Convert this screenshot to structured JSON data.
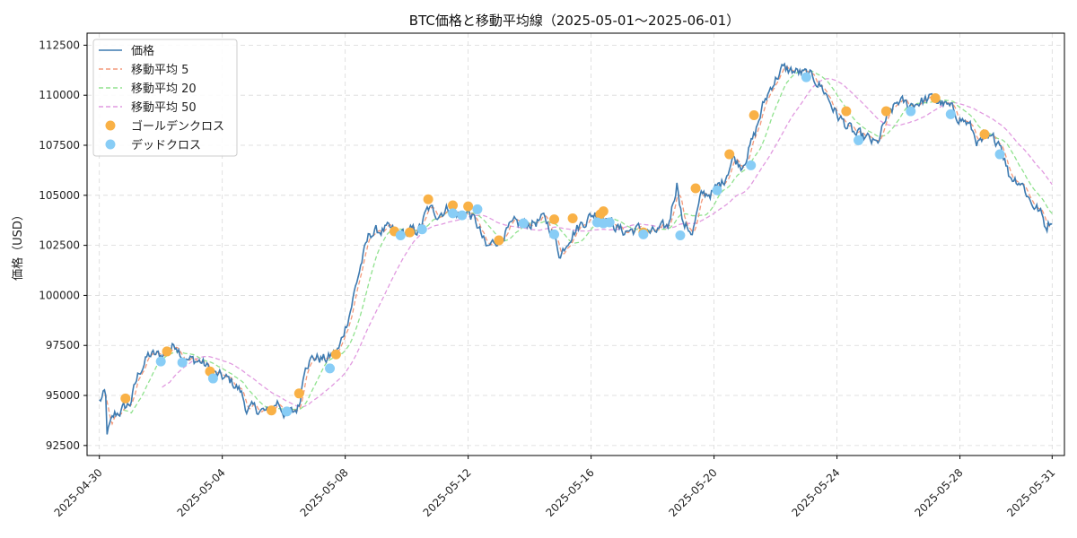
{
  "chart_data": {
    "type": "line",
    "title": "BTC価格と移動平均線（2025-05-01〜2025-06-01）",
    "xlabel": "",
    "ylabel": "価格（USD）",
    "ylim": [
      92000,
      113100
    ],
    "yticks": [
      92500,
      95000,
      97500,
      100000,
      102500,
      105000,
      107500,
      110000,
      112500
    ],
    "xlim": [
      -0.4,
      31.4
    ],
    "xticks": [
      {
        "pos": 0,
        "label": "2025-04-30"
      },
      {
        "pos": 4,
        "label": "2025-05-04"
      },
      {
        "pos": 8,
        "label": "2025-05-08"
      },
      {
        "pos": 12,
        "label": "2025-05-12"
      },
      {
        "pos": 16,
        "label": "2025-05-16"
      },
      {
        "pos": 20,
        "label": "2025-05-20"
      },
      {
        "pos": 24,
        "label": "2025-05-24"
      },
      {
        "pos": 28,
        "label": "2025-05-28"
      },
      {
        "pos": 31,
        "label": "2025-05-31"
      }
    ],
    "grid": true,
    "legend_position": "upper-left",
    "anchors": [
      [
        0,
        94700
      ],
      [
        0.2,
        95100
      ],
      [
        0.25,
        93100
      ],
      [
        0.5,
        94000
      ],
      [
        1,
        94600
      ],
      [
        1.3,
        96200
      ],
      [
        1.6,
        97000
      ],
      [
        2,
        97000
      ],
      [
        2.3,
        97300
      ],
      [
        2.5,
        97600
      ],
      [
        2.8,
        96800
      ],
      [
        3.3,
        96700
      ],
      [
        3.8,
        96000
      ],
      [
        4.3,
        95700
      ],
      [
        4.6,
        95200
      ],
      [
        4.8,
        94300
      ],
      [
        5.2,
        94300
      ],
      [
        5.5,
        94100
      ],
      [
        5.8,
        94700
      ],
      [
        6.0,
        94200
      ],
      [
        6.3,
        94100
      ],
      [
        6.5,
        94500
      ],
      [
        6.7,
        96700
      ],
      [
        7.0,
        96900
      ],
      [
        7.4,
        96800
      ],
      [
        7.8,
        97300
      ],
      [
        8.2,
        99500
      ],
      [
        8.5,
        101500
      ],
      [
        8.8,
        103100
      ],
      [
        9.3,
        103300
      ],
      [
        9.7,
        103100
      ],
      [
        10.0,
        103100
      ],
      [
        10.4,
        103300
      ],
      [
        10.7,
        104300
      ],
      [
        11.0,
        104100
      ],
      [
        11.4,
        104400
      ],
      [
        11.7,
        104000
      ],
      [
        12.0,
        104200
      ],
      [
        12.3,
        103500
      ],
      [
        12.6,
        102300
      ],
      [
        13.0,
        102900
      ],
      [
        13.5,
        103500
      ],
      [
        14.0,
        103600
      ],
      [
        14.5,
        103800
      ],
      [
        14.8,
        103000
      ],
      [
        15.0,
        102000
      ],
      [
        15.3,
        103000
      ],
      [
        15.7,
        103600
      ],
      [
        16.0,
        104000
      ],
      [
        16.3,
        104200
      ],
      [
        16.6,
        103700
      ],
      [
        17.0,
        103200
      ],
      [
        17.5,
        103300
      ],
      [
        18.0,
        103100
      ],
      [
        18.5,
        103400
      ],
      [
        18.8,
        105700
      ],
      [
        19.0,
        103500
      ],
      [
        19.3,
        103200
      ],
      [
        19.6,
        105000
      ],
      [
        20.0,
        105200
      ],
      [
        20.3,
        105700
      ],
      [
        20.6,
        106900
      ],
      [
        20.9,
        106500
      ],
      [
        21.3,
        107900
      ],
      [
        21.6,
        109500
      ],
      [
        21.9,
        110600
      ],
      [
        22.2,
        111300
      ],
      [
        22.6,
        111200
      ],
      [
        23.0,
        111000
      ],
      [
        23.3,
        110800
      ],
      [
        23.6,
        110200
      ],
      [
        24.0,
        109000
      ],
      [
        24.3,
        108500
      ],
      [
        24.6,
        108000
      ],
      [
        25.0,
        107800
      ],
      [
        25.3,
        107500
      ],
      [
        25.6,
        108800
      ],
      [
        26.0,
        109700
      ],
      [
        26.3,
        109500
      ],
      [
        26.7,
        109700
      ],
      [
        27.0,
        109800
      ],
      [
        27.3,
        109700
      ],
      [
        27.7,
        109300
      ],
      [
        28.0,
        108900
      ],
      [
        28.3,
        108500
      ],
      [
        28.6,
        107600
      ],
      [
        29.0,
        107700
      ],
      [
        29.3,
        107800
      ],
      [
        29.6,
        106000
      ],
      [
        30.0,
        105700
      ],
      [
        30.3,
        104700
      ],
      [
        30.6,
        104200
      ],
      [
        30.8,
        103400
      ],
      [
        31.0,
        103900
      ]
    ],
    "series": [
      {
        "name": "価格",
        "color": "#3d7ab0",
        "style": "solid"
      },
      {
        "name": "移動平均 5",
        "color": "#f4997a",
        "style": "dashed",
        "window": 5
      },
      {
        "name": "移動平均 20",
        "color": "#90e28e",
        "style": "dashed",
        "window": 20
      },
      {
        "name": "移動平均 50",
        "color": "#e19ae0",
        "style": "dashed",
        "window": 50
      }
    ],
    "golden_cross": {
      "name": "ゴールデンクロス",
      "color": "#f9b146",
      "points": [
        [
          0.85,
          94850
        ],
        [
          2.2,
          97200
        ],
        [
          3.6,
          96200
        ],
        [
          5.6,
          94250
        ],
        [
          6.5,
          95100
        ],
        [
          7.7,
          97050
        ],
        [
          9.6,
          103200
        ],
        [
          10.1,
          103150
        ],
        [
          10.7,
          104800
        ],
        [
          11.5,
          104500
        ],
        [
          12.0,
          104450
        ],
        [
          13.0,
          102750
        ],
        [
          14.8,
          103800
        ],
        [
          15.4,
          103850
        ],
        [
          16.3,
          104050
        ],
        [
          16.4,
          104200
        ],
        [
          17.7,
          103150
        ],
        [
          19.4,
          105350
        ],
        [
          20.5,
          107050
        ],
        [
          21.3,
          109000
        ],
        [
          24.3,
          109200
        ],
        [
          25.6,
          109200
        ],
        [
          27.2,
          109850
        ],
        [
          28.8,
          108050
        ]
      ]
    },
    "dead_cross": {
      "name": "デッドクロス",
      "color": "#88cdf6",
      "points": [
        [
          2.0,
          96700
        ],
        [
          2.7,
          96650
        ],
        [
          3.7,
          95850
        ],
        [
          6.1,
          94200
        ],
        [
          7.5,
          96350
        ],
        [
          9.8,
          103000
        ],
        [
          10.5,
          103300
        ],
        [
          11.5,
          104100
        ],
        [
          11.8,
          104000
        ],
        [
          12.3,
          104300
        ],
        [
          13.8,
          103600
        ],
        [
          14.8,
          103050
        ],
        [
          16.2,
          103650
        ],
        [
          16.4,
          103600
        ],
        [
          16.6,
          103650
        ],
        [
          17.7,
          103050
        ],
        [
          18.9,
          103000
        ],
        [
          20.1,
          105250
        ],
        [
          21.2,
          106500
        ],
        [
          23.0,
          110900
        ],
        [
          24.7,
          107750
        ],
        [
          26.4,
          109200
        ],
        [
          27.7,
          109050
        ],
        [
          29.3,
          107050
        ]
      ]
    }
  }
}
